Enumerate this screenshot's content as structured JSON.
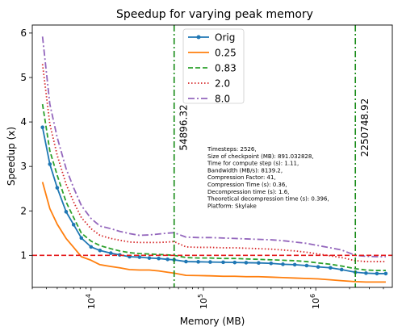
{
  "chart_data": {
    "type": "line",
    "title": "Speedup for varying peak memory",
    "xlabel": "Memory (MB)",
    "ylabel": "Speedup (x)",
    "xscale": "log",
    "xlim": [
      3000,
      4800000
    ],
    "ylim": [
      0.28,
      6.18
    ],
    "x_ticks": [
      {
        "value": 10000,
        "label": "10^4",
        "base": "10",
        "exp": "4"
      },
      {
        "value": 100000,
        "label": "10^5",
        "base": "10",
        "exp": "5"
      },
      {
        "value": 1000000,
        "label": "10^6",
        "base": "10",
        "exp": "6"
      }
    ],
    "y_ticks": [
      1,
      2,
      3,
      4,
      5,
      6
    ],
    "legend_position": "top-center",
    "x": [
      3700,
      4300,
      5000,
      6000,
      7000,
      8200,
      10000,
      12000,
      15000,
      18000,
      22000,
      27000,
      33000,
      40000,
      48000,
      54896,
      70000,
      90000,
      115000,
      150000,
      190000,
      240000,
      310000,
      400000,
      510000,
      650000,
      830000,
      1050000,
      1350000,
      1700000,
      2250748,
      2800000,
      3500000,
      4200000
    ],
    "series": [
      {
        "name": "Orig",
        "color": "#1f77b4",
        "dash": "solid",
        "marker": true,
        "values": [
          3.88,
          3.05,
          2.52,
          1.98,
          1.69,
          1.39,
          1.19,
          1.11,
          1.05,
          1.01,
          0.97,
          0.96,
          0.94,
          0.93,
          0.91,
          0.9,
          0.86,
          0.855,
          0.85,
          0.845,
          0.84,
          0.835,
          0.83,
          0.82,
          0.8,
          0.79,
          0.77,
          0.74,
          0.72,
          0.68,
          0.62,
          0.6,
          0.59,
          0.59
        ]
      },
      {
        "name": "0.25",
        "color": "#ff7f0e",
        "dash": "solid",
        "marker": false,
        "values": [
          2.65,
          2.05,
          1.7,
          1.38,
          1.18,
          0.97,
          0.89,
          0.79,
          0.75,
          0.72,
          0.68,
          0.67,
          0.67,
          0.65,
          0.62,
          0.6,
          0.55,
          0.545,
          0.54,
          0.53,
          0.53,
          0.52,
          0.52,
          0.51,
          0.5,
          0.49,
          0.48,
          0.47,
          0.45,
          0.43,
          0.41,
          0.4,
          0.4,
          0.4
        ]
      },
      {
        "name": "0.83",
        "color": "#2ca02c",
        "dash": "dashed",
        "marker": false,
        "values": [
          4.4,
          3.35,
          2.8,
          2.2,
          1.85,
          1.5,
          1.32,
          1.22,
          1.15,
          1.1,
          1.06,
          1.04,
          1.03,
          1.02,
          1.01,
          1.0,
          0.95,
          0.94,
          0.94,
          0.93,
          0.93,
          0.92,
          0.91,
          0.9,
          0.89,
          0.88,
          0.86,
          0.83,
          0.8,
          0.76,
          0.7,
          0.67,
          0.66,
          0.66
        ]
      },
      {
        "name": "2.0",
        "color": "#d62728",
        "dash": "dotted",
        "marker": false,
        "values": [
          5.3,
          3.95,
          3.25,
          2.6,
          2.2,
          1.85,
          1.6,
          1.45,
          1.38,
          1.34,
          1.3,
          1.29,
          1.29,
          1.29,
          1.3,
          1.31,
          1.19,
          1.18,
          1.18,
          1.17,
          1.17,
          1.16,
          1.15,
          1.14,
          1.12,
          1.1,
          1.07,
          1.03,
          0.99,
          0.95,
          0.88,
          0.86,
          0.86,
          0.86
        ]
      },
      {
        "name": "8.0",
        "color": "#9467bd",
        "dash": "dashdot",
        "marker": false,
        "values": [
          5.92,
          4.4,
          3.65,
          2.95,
          2.52,
          2.12,
          1.83,
          1.66,
          1.6,
          1.54,
          1.49,
          1.45,
          1.46,
          1.48,
          1.5,
          1.51,
          1.41,
          1.4,
          1.4,
          1.39,
          1.38,
          1.37,
          1.36,
          1.35,
          1.33,
          1.3,
          1.27,
          1.22,
          1.17,
          1.12,
          1.0,
          0.98,
          0.97,
          0.97
        ]
      }
    ],
    "reference_lines": [
      {
        "orientation": "horizontal",
        "value": 1.0,
        "color": "#e41a1c",
        "dash": "dashed"
      },
      {
        "orientation": "vertical",
        "value": 54896.32,
        "label": "54896.32",
        "color": "#168a16",
        "dash": "dashdot"
      },
      {
        "orientation": "vertical",
        "value": 2250748.92,
        "label": "2250748.92",
        "color": "#168a16",
        "dash": "dashdot"
      }
    ],
    "annotation": [
      "Timesteps: 2526,",
      "Size of checkpoint (MB): 891.032828,",
      "Time for compute step (s): 1.11,",
      "Bandwidth (MB/s): 8139.2,",
      "Compression Factor: 41,",
      "Compression Time (s): 0.36,",
      "Decompression time (s): 1.6,",
      "Theoretical decompression time (s): 0.396,",
      "Platform: Skylake"
    ]
  }
}
